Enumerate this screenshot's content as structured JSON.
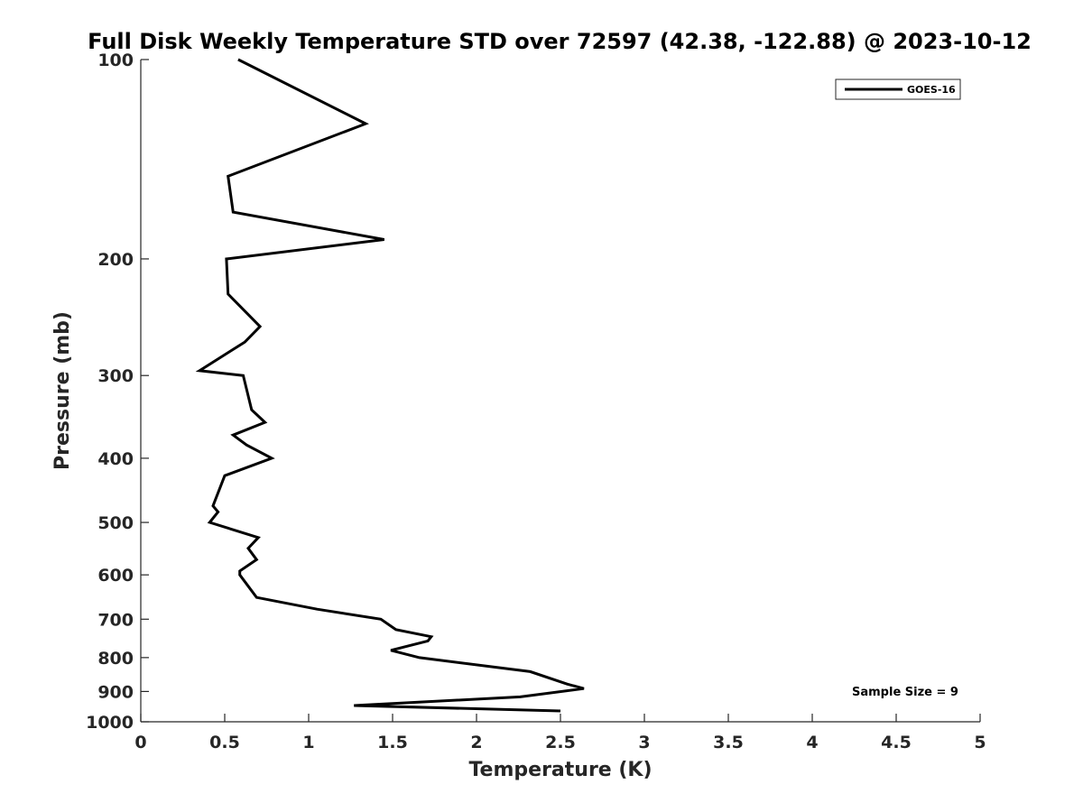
{
  "chart_data": {
    "type": "line",
    "title": "Full Disk Weekly Temperature STD over 72597 (42.38, -122.88) @ 2023-10-12",
    "xlabel": "Temperature (K)",
    "ylabel": "Pressure (mb)",
    "xlim": [
      0,
      5
    ],
    "ylim": [
      100,
      1000
    ],
    "y_scale": "log",
    "y_reversed": true,
    "x_ticks": [
      "0",
      "0.5",
      "1",
      "1.5",
      "2",
      "2.5",
      "3",
      "3.5",
      "4",
      "4.5",
      "5"
    ],
    "y_ticks": [
      "100",
      "200",
      "300",
      "400",
      "500",
      "600",
      "700",
      "800",
      "900",
      "1000"
    ],
    "grid": false,
    "legend_position": "top-right",
    "annotation": "Sample Size = 9",
    "series": [
      {
        "name": "GOES-16",
        "color": "#000000",
        "points": [
          [
            0.58,
            100
          ],
          [
            1.34,
            125
          ],
          [
            0.52,
            150
          ],
          [
            0.55,
            170
          ],
          [
            1.45,
            187
          ],
          [
            0.51,
            200
          ],
          [
            0.52,
            226
          ],
          [
            0.71,
            253
          ],
          [
            0.62,
            267
          ],
          [
            0.35,
            295
          ],
          [
            0.61,
            300
          ],
          [
            0.66,
            338
          ],
          [
            0.74,
            353
          ],
          [
            0.55,
            369
          ],
          [
            0.63,
            382
          ],
          [
            0.78,
            400
          ],
          [
            0.5,
            425
          ],
          [
            0.43,
            472
          ],
          [
            0.46,
            482
          ],
          [
            0.41,
            500
          ],
          [
            0.7,
            527
          ],
          [
            0.64,
            547
          ],
          [
            0.69,
            569
          ],
          [
            0.59,
            592
          ],
          [
            0.59,
            600
          ],
          [
            0.69,
            649
          ],
          [
            1.05,
            676
          ],
          [
            1.43,
            700
          ],
          [
            1.52,
            726
          ],
          [
            1.73,
            744
          ],
          [
            1.71,
            755
          ],
          [
            1.49,
            780
          ],
          [
            1.66,
            800
          ],
          [
            2.32,
            840
          ],
          [
            2.54,
            877
          ],
          [
            2.64,
            891
          ],
          [
            2.26,
            917
          ],
          [
            1.27,
            945
          ],
          [
            2.5,
            963
          ]
        ]
      }
    ]
  }
}
